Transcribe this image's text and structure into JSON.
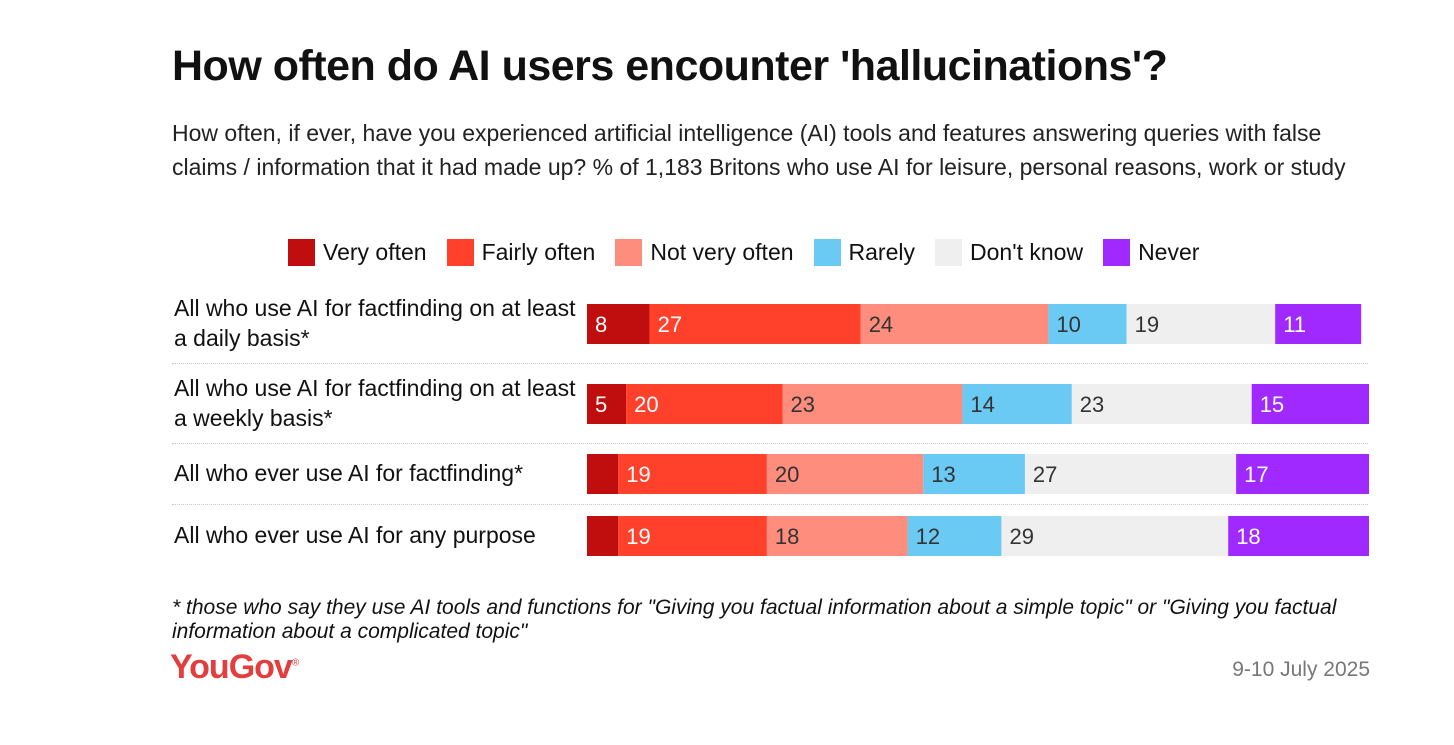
{
  "header": {
    "title": "How often do AI users encounter 'hallucinations'?",
    "subtitle": "How often, if ever, have you experienced artificial intelligence (AI) tools and features answering queries with false claims / information that it had made up? % of 1,183 Britons who use AI for leisure, personal reasons, work or study"
  },
  "legend": [
    {
      "label": "Very often",
      "color": "#c00d0d"
    },
    {
      "label": "Fairly often",
      "color": "#ff412c"
    },
    {
      "label": "Not very often",
      "color": "#ff8d7e"
    },
    {
      "label": "Rarely",
      "color": "#6acaf4"
    },
    {
      "label": "Don't know",
      "color": "#efefef"
    },
    {
      "label": "Never",
      "color": "#9f29ff"
    }
  ],
  "rows": [
    {
      "label": "All who use AI for factfinding on at least a daily basis*"
    },
    {
      "label": "All who use AI for factfinding on at least a weekly basis*"
    },
    {
      "label": "All who ever use AI for factfinding*"
    },
    {
      "label": "All who ever use AI for any purpose"
    }
  ],
  "chart_data": {
    "type": "bar",
    "orientation": "horizontal-stacked",
    "title": "How often do AI users encounter 'hallucinations'?",
    "categories": [
      "All who use AI for factfinding on at least a daily basis*",
      "All who use AI for factfinding on at least a weekly basis*",
      "All who ever use AI for factfinding*",
      "All who ever use AI for any purpose"
    ],
    "series": [
      {
        "name": "Very often",
        "color": "#c00d0d",
        "values": [
          8,
          5,
          4,
          4
        ],
        "value_labels": [
          "8",
          "5",
          "",
          ""
        ]
      },
      {
        "name": "Fairly often",
        "color": "#ff412c",
        "values": [
          27,
          20,
          19,
          19
        ],
        "value_labels": [
          "27",
          "20",
          "19",
          "19"
        ]
      },
      {
        "name": "Not very often",
        "color": "#ff8d7e",
        "values": [
          24,
          23,
          20,
          18
        ],
        "value_labels": [
          "24",
          "23",
          "20",
          "18"
        ]
      },
      {
        "name": "Rarely",
        "color": "#6acaf4",
        "values": [
          10,
          14,
          13,
          12
        ],
        "value_labels": [
          "10",
          "14",
          "13",
          "12"
        ]
      },
      {
        "name": "Don't know",
        "color": "#efefef",
        "values": [
          19,
          23,
          27,
          29
        ],
        "value_labels": [
          "19",
          "23",
          "27",
          "29"
        ]
      },
      {
        "name": "Never",
        "color": "#9f29ff",
        "values": [
          11,
          15,
          17,
          18
        ],
        "value_labels": [
          "11",
          "15",
          "17",
          "18"
        ]
      }
    ],
    "xlim": [
      0,
      100
    ],
    "unit": "%"
  },
  "footnote": "* those who say they use AI tools and functions for \"Giving you factual information about a simple topic\" or \"Giving you factual information about a complicated topic\"",
  "brand": {
    "logo_text": "YouGov",
    "logo_mark": "®",
    "color": "#e33d3d"
  },
  "date": "9-10 July 2025"
}
